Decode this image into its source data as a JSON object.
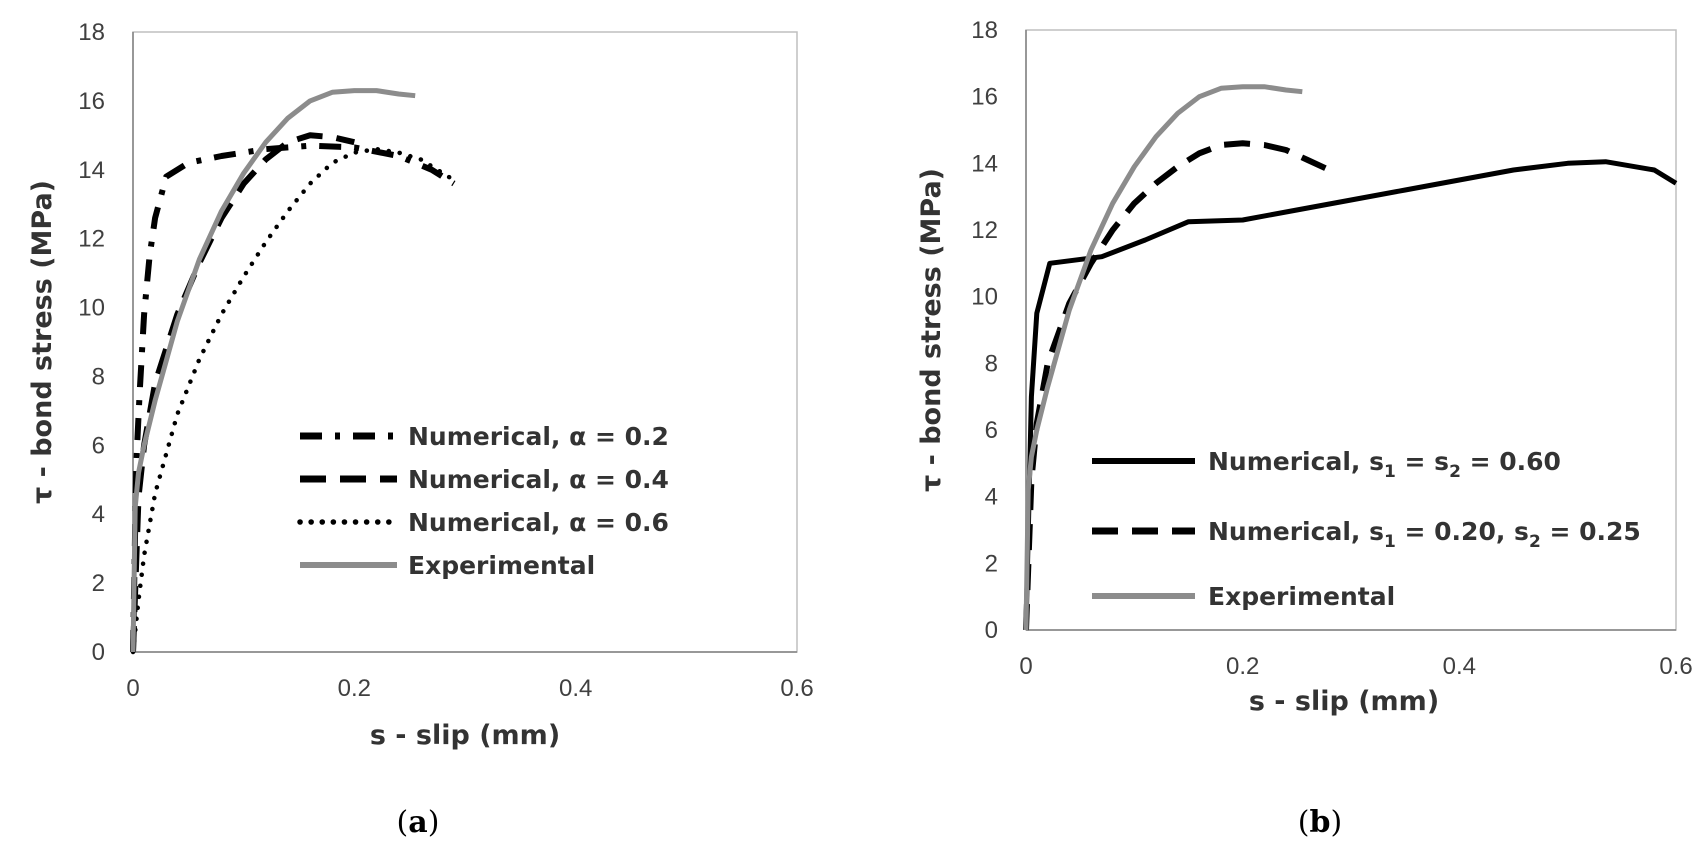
{
  "chart_data": [
    {
      "type": "line",
      "panel_label": "(a)",
      "panel_letter": "a",
      "title": "",
      "xlabel": "s - slip (mm)",
      "ylabel": "τ - bond stress (MPa)",
      "xlim": [
        0,
        0.6
      ],
      "ylim": [
        0,
        18
      ],
      "xticks": [
        0,
        0.2,
        0.4,
        0.6
      ],
      "xtick_labels": [
        "0",
        "0.2",
        "0.4",
        "0.6"
      ],
      "yticks": [
        0,
        2,
        4,
        6,
        8,
        10,
        12,
        14,
        16,
        18
      ],
      "ytick_labels": [
        "0",
        "2",
        "4",
        "6",
        "8",
        "10",
        "12",
        "14",
        "16",
        "18"
      ],
      "grid": false,
      "legend_position": "bottom-right",
      "series": [
        {
          "name": "Numerical, α = 0.2",
          "style": "dashdot",
          "color": "#000000",
          "x": [
            0,
            0.003,
            0.006,
            0.01,
            0.015,
            0.02,
            0.03,
            0.05,
            0.08,
            0.12,
            0.16,
            0.2,
            0.24,
            0.27,
            0.29
          ],
          "y": [
            0,
            5.5,
            7.5,
            9.8,
            11.5,
            12.6,
            13.8,
            14.2,
            14.4,
            14.6,
            14.7,
            14.65,
            14.4,
            14.0,
            13.6
          ]
        },
        {
          "name": "Numerical, α = 0.4",
          "style": "dashed",
          "color": "#000000",
          "x": [
            0,
            0.005,
            0.01,
            0.02,
            0.04,
            0.06,
            0.08,
            0.1,
            0.12,
            0.14,
            0.16,
            0.18,
            0.2
          ],
          "y": [
            0,
            4.5,
            6.0,
            7.8,
            9.8,
            11.3,
            12.6,
            13.6,
            14.3,
            14.8,
            15.0,
            14.95,
            14.8
          ]
        },
        {
          "name": "Numerical, α = 0.6",
          "style": "dotted",
          "color": "#000000",
          "x": [
            0,
            0.005,
            0.01,
            0.02,
            0.04,
            0.06,
            0.08,
            0.1,
            0.12,
            0.14,
            0.16,
            0.18,
            0.2,
            0.22,
            0.24,
            0.26,
            0.28,
            0.29
          ],
          "y": [
            0,
            1.5,
            2.8,
            4.6,
            6.9,
            8.5,
            9.8,
            10.9,
            11.9,
            12.8,
            13.6,
            14.2,
            14.5,
            14.6,
            14.5,
            14.3,
            13.9,
            13.7
          ]
        },
        {
          "name": "Experimental",
          "style": "solid",
          "color": "#8c8c8c",
          "x": [
            0,
            0.002,
            0.005,
            0.01,
            0.02,
            0.04,
            0.06,
            0.08,
            0.1,
            0.12,
            0.14,
            0.16,
            0.18,
            0.2,
            0.22,
            0.24,
            0.255
          ],
          "y": [
            0,
            4.2,
            5.2,
            6.0,
            7.3,
            9.6,
            11.4,
            12.8,
            13.9,
            14.8,
            15.5,
            16.0,
            16.25,
            16.3,
            16.3,
            16.2,
            16.15
          ]
        }
      ]
    },
    {
      "type": "line",
      "panel_label": "(b)",
      "panel_letter": "b",
      "title": "",
      "xlabel": "s - slip (mm)",
      "ylabel": "τ - bond stress (MPa)",
      "xlim": [
        0,
        0.6
      ],
      "ylim": [
        0,
        18
      ],
      "xticks": [
        0,
        0.2,
        0.4,
        0.6
      ],
      "xtick_labels": [
        "0",
        "0.2",
        "0.4",
        "0.6"
      ],
      "yticks": [
        0,
        2,
        4,
        6,
        8,
        10,
        12,
        14,
        16,
        18
      ],
      "ytick_labels": [
        "0",
        "2",
        "4",
        "6",
        "8",
        "10",
        "12",
        "14",
        "16",
        "18"
      ],
      "grid": false,
      "legend_position": "bottom-left",
      "series": [
        {
          "name": "Numerical, s1 = s2 = 0.60",
          "legend_parts": [
            "Numerical, s",
            "1",
            " = s",
            "2",
            " = 0.60"
          ],
          "style": "solid",
          "color": "#000000",
          "x": [
            0,
            0.005,
            0.01,
            0.022,
            0.07,
            0.11,
            0.15,
            0.2,
            0.25,
            0.3,
            0.35,
            0.4,
            0.45,
            0.5,
            0.535,
            0.58,
            0.6
          ],
          "y": [
            0,
            7.0,
            9.5,
            11.0,
            11.2,
            11.7,
            12.25,
            12.3,
            12.6,
            12.9,
            13.2,
            13.5,
            13.8,
            14.0,
            14.05,
            13.8,
            13.4
          ]
        },
        {
          "name": "Numerical, s1 = 0.20, s2 = 0.25",
          "legend_parts": [
            "Numerical, s",
            "1",
            " = 0.20, s",
            "2",
            " = 0.25"
          ],
          "style": "dashed",
          "color": "#000000",
          "x": [
            0,
            0.005,
            0.01,
            0.02,
            0.04,
            0.06,
            0.08,
            0.1,
            0.12,
            0.14,
            0.16,
            0.18,
            0.2,
            0.22,
            0.24,
            0.26,
            0.28
          ],
          "y": [
            0,
            4.5,
            6.2,
            8.0,
            9.8,
            11.0,
            12.0,
            12.8,
            13.4,
            13.9,
            14.3,
            14.55,
            14.6,
            14.55,
            14.4,
            14.1,
            13.8
          ]
        },
        {
          "name": "Experimental",
          "legend_parts": [
            "Experimental"
          ],
          "style": "solid",
          "color": "#8c8c8c",
          "x": [
            0,
            0.002,
            0.005,
            0.01,
            0.02,
            0.04,
            0.06,
            0.08,
            0.1,
            0.12,
            0.14,
            0.16,
            0.18,
            0.2,
            0.22,
            0.24,
            0.255
          ],
          "y": [
            0,
            4.2,
            5.2,
            6.0,
            7.3,
            9.6,
            11.4,
            12.8,
            13.9,
            14.8,
            15.5,
            16.0,
            16.25,
            16.3,
            16.3,
            16.2,
            16.15
          ]
        }
      ]
    }
  ]
}
